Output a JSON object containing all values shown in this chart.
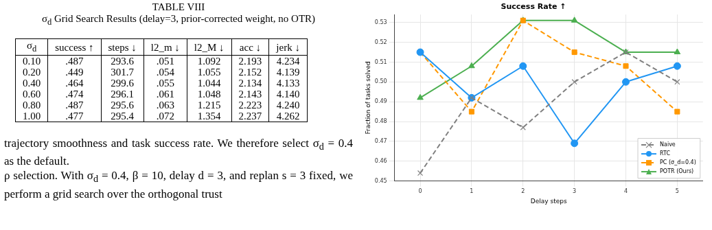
{
  "chart_data": [
    {
      "type": "other",
      "title": "TABLE VIII",
      "subtitle": "σ$_{d}$ Grid Search Results (delay=3, prior-corrected weight, no OTR)",
      "categories": [
        "σ$_{d}$",
        "success ↑",
        "steps ↓",
        "l2_m ↓",
        "l2_M ↓",
        "acc ↓",
        "jerk ↓"
      ],
      "cell_labels": [
        [
          "0.10",
          ".487",
          "293.6",
          ".051",
          "1.092",
          "2.193",
          "4.234"
        ],
        [
          "0.20",
          ".449",
          "301.7",
          ".054",
          "1.055",
          "2.152",
          "4.139"
        ],
        [
          "0.40",
          ".464",
          "299.6",
          ".055",
          "1.044",
          "2.134",
          "4.133"
        ],
        [
          "0.60",
          ".474",
          "296.1",
          ".061",
          "1.048",
          "2.143",
          "4.140"
        ],
        [
          "0.80",
          ".487",
          "295.6",
          ".063",
          "1.215",
          "2.223",
          "4.240"
        ],
        [
          "1.00",
          ".477",
          "295.4",
          ".072",
          "1.354",
          "2.237",
          "4.262"
        ]
      ],
      "annotations": [
        "trajectory smoothness and task success rate. We therefore select σ$_{d}$ = 0.4 as the default.",
        "ρ selection. With σ$_{d}$ = 0.4, β = 10, delay d = 3, and replan s = 3 fixed, we perform a grid search over the orthogonal trust"
      ]
    },
    {
      "type": "line",
      "title": "Success Rate ↑",
      "xlabel": "Delay steps",
      "ylabel": "Fraction of tasks solved",
      "categories": [
        "0",
        "1",
        "2",
        "3",
        "4",
        "5"
      ],
      "ylim": [
        0.45,
        0.534
      ],
      "yticks": [
        {
          "value": 0.45,
          "label": "0.45"
        },
        {
          "value": 0.46,
          "label": "0.46"
        },
        {
          "value": 0.47,
          "label": "0.47"
        },
        {
          "value": 0.48,
          "label": "0.48"
        },
        {
          "value": 0.49,
          "label": "0.49"
        },
        {
          "value": 0.5,
          "label": "0.50"
        },
        {
          "value": 0.51,
          "label": "0.51"
        },
        {
          "value": 0.52,
          "label": "0.52"
        },
        {
          "value": 0.53,
          "label": "0.53"
        }
      ],
      "grid": true,
      "legend": "bottom right",
      "series": [
        {
          "name": "Naive",
          "color": "#808080",
          "marker": "cross",
          "line_style": "dashed",
          "values": [
            0.454,
            0.492,
            0.477,
            0.5,
            0.515,
            0.5
          ]
        },
        {
          "name": "RTC",
          "color": "#2196f3",
          "marker": "circle",
          "line_style": "solid",
          "values": [
            0.515,
            0.492,
            0.508,
            0.469,
            0.5,
            0.508
          ]
        },
        {
          "name": "PC (σ_d=0.4)",
          "color": "#ff9800",
          "marker": "square",
          "line_style": "dashed",
          "values": [
            0.515,
            0.485,
            0.531,
            0.515,
            0.508,
            0.485
          ]
        },
        {
          "name": "POTR (Ours)",
          "color": "#4caf50",
          "marker": "triangle",
          "line_style": "solid",
          "values": [
            0.492,
            0.508,
            0.531,
            0.531,
            0.515,
            0.515
          ]
        }
      ]
    }
  ]
}
